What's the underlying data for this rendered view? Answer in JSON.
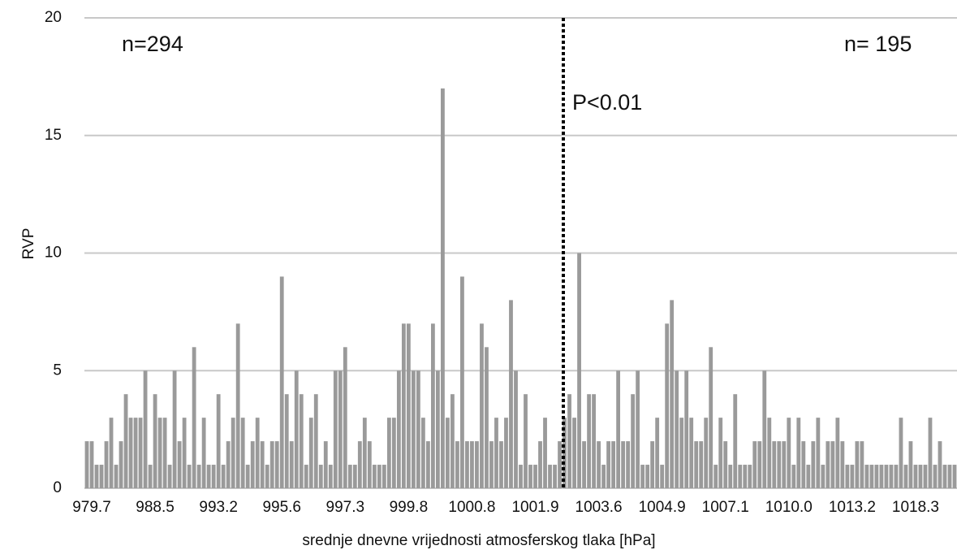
{
  "chart_data": {
    "type": "bar",
    "x_label": "srednje dnevne vrijednosti atmosferskog tlaka [hPa]",
    "y_label": "RVP",
    "annotations": [
      "n=294",
      "n= 195",
      "P<0.01"
    ],
    "categories": [
      null,
      "979.7",
      null,
      null,
      null,
      null,
      null,
      null,
      null,
      null,
      null,
      null,
      null,
      null,
      "988.5",
      null,
      null,
      null,
      null,
      null,
      null,
      null,
      null,
      null,
      null,
      null,
      null,
      "993.2",
      null,
      null,
      null,
      null,
      null,
      null,
      null,
      null,
      null,
      null,
      null,
      null,
      "995.6",
      null,
      null,
      null,
      null,
      null,
      null,
      null,
      null,
      null,
      null,
      null,
      null,
      "997.3",
      null,
      null,
      null,
      null,
      null,
      null,
      null,
      null,
      null,
      null,
      null,
      null,
      "999.8",
      null,
      null,
      null,
      null,
      null,
      null,
      null,
      null,
      null,
      null,
      null,
      null,
      "1000.8",
      null,
      null,
      null,
      null,
      null,
      null,
      null,
      null,
      null,
      null,
      null,
      null,
      "1001.9",
      null,
      null,
      null,
      null,
      null,
      null,
      null,
      null,
      null,
      null,
      null,
      null,
      "1003.6",
      null,
      null,
      null,
      null,
      null,
      null,
      null,
      null,
      null,
      null,
      null,
      null,
      "1004.9",
      null,
      null,
      null,
      null,
      null,
      null,
      null,
      null,
      null,
      null,
      null,
      null,
      "1007.1",
      null,
      null,
      null,
      null,
      null,
      null,
      null,
      null,
      null,
      null,
      null,
      null,
      "1010.0",
      null,
      null,
      null,
      null,
      null,
      null,
      null,
      null,
      null,
      null,
      null,
      null,
      "1013.2",
      null,
      null,
      null,
      null,
      null,
      null,
      null,
      null,
      null,
      null,
      null,
      null,
      "1018.3",
      null,
      null,
      null,
      null,
      null,
      null,
      null,
      null
    ],
    "values": [
      2,
      2,
      1,
      1,
      2,
      3,
      1,
      2,
      4,
      3,
      3,
      3,
      5,
      1,
      4,
      3,
      3,
      1,
      5,
      2,
      3,
      1,
      6,
      1,
      3,
      1,
      1,
      4,
      1,
      2,
      3,
      7,
      3,
      1,
      2,
      3,
      2,
      1,
      2,
      2,
      9,
      4,
      2,
      5,
      4,
      1,
      3,
      4,
      1,
      2,
      1,
      5,
      5,
      6,
      1,
      1,
      2,
      3,
      2,
      1,
      1,
      1,
      3,
      3,
      5,
      7,
      7,
      5,
      5,
      3,
      2,
      7,
      5,
      17,
      3,
      4,
      2,
      9,
      2,
      2,
      2,
      7,
      6,
      2,
      3,
      2,
      3,
      8,
      5,
      1,
      4,
      1,
      1,
      2,
      3,
      1,
      1,
      2,
      3,
      4,
      3,
      10,
      2,
      4,
      4,
      2,
      1,
      2,
      2,
      5,
      2,
      2,
      4,
      5,
      1,
      1,
      2,
      3,
      1,
      7,
      8,
      5,
      3,
      5,
      3,
      2,
      2,
      3,
      6,
      1,
      3,
      2,
      1,
      4,
      1,
      1,
      1,
      2,
      2,
      5,
      3,
      2,
      2,
      2,
      3,
      1,
      3,
      2,
      1,
      2,
      3,
      1,
      2,
      2,
      3,
      2,
      1,
      1,
      2,
      2,
      1,
      1,
      1,
      1,
      1,
      1,
      1,
      3,
      1,
      2,
      1,
      1,
      1,
      3,
      1,
      2,
      1,
      1,
      1
    ],
    "color": "#9a9a9a",
    "ylim": [
      0,
      20
    ],
    "yticks": [
      0,
      5,
      10,
      15,
      20
    ],
    "grid": true
  }
}
